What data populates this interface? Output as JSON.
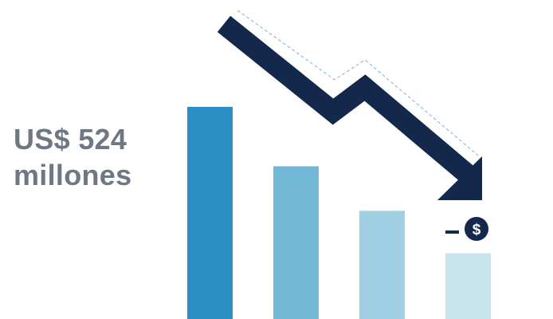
{
  "headline": {
    "amount": "US$ 524",
    "unit": "millones"
  },
  "icons": {
    "minus_dollar": "minus-dollar-coin-icon",
    "trend": "down-trend-arrow-icon"
  },
  "colors": {
    "bars": [
      "#2b8fc3",
      "#72b9d7",
      "#9ecfe3",
      "#c8e4ef"
    ],
    "arrow": "#13284a",
    "arrow_dash": "#7fb0d8",
    "text": "#6e7784",
    "coin": "#13284a"
  },
  "chart_data": {
    "type": "bar",
    "categories": [
      "",
      "",
      "",
      ""
    ],
    "values": [
      100,
      72,
      51,
      31
    ],
    "ylim": [
      0,
      100
    ],
    "grid": false,
    "legend": "none",
    "title": "",
    "xlabel": "",
    "ylabel": ""
  }
}
